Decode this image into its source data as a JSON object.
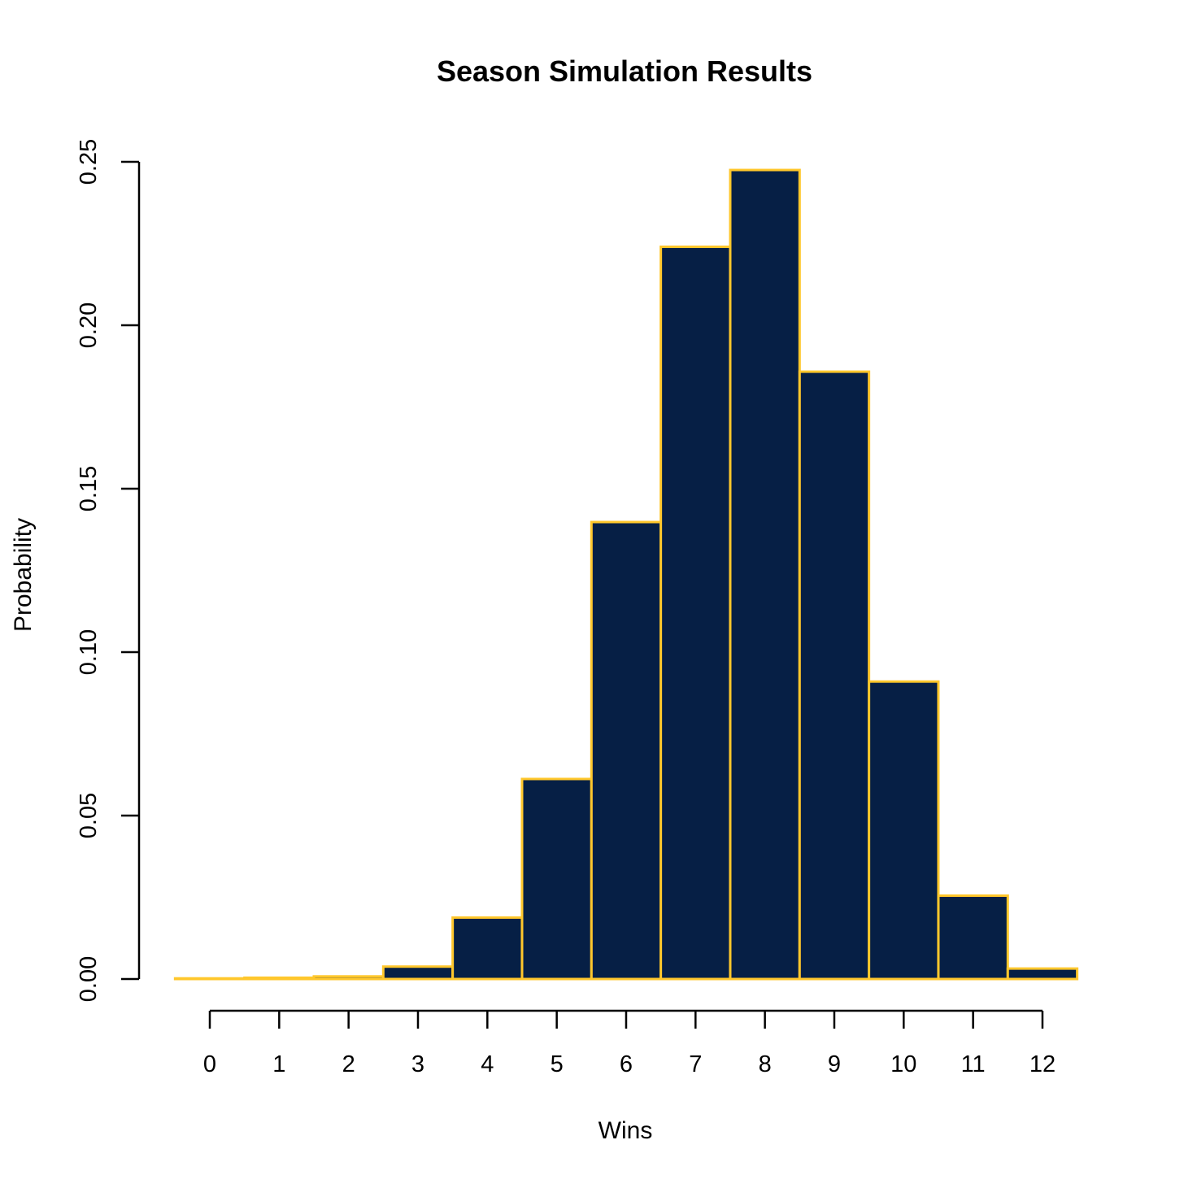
{
  "chart_data": {
    "type": "bar",
    "title": "Season Simulation Results",
    "xlabel": "Wins",
    "ylabel": "Probability",
    "categories": [
      "0",
      "1",
      "2",
      "3",
      "4",
      "5",
      "6",
      "7",
      "8",
      "9",
      "10",
      "11",
      "12"
    ],
    "values": [
      0.0002,
      0.0004,
      0.0008,
      0.0038,
      0.0188,
      0.0612,
      0.1398,
      0.224,
      0.2475,
      0.1858,
      0.091,
      0.0255,
      0.0032
    ],
    "x_ticks": [
      0,
      1,
      2,
      3,
      4,
      5,
      6,
      7,
      8,
      9,
      10,
      11,
      12
    ],
    "x_tick_labels": [
      "0",
      "1",
      "2",
      "3",
      "4",
      "5",
      "6",
      "7",
      "8",
      "9",
      "10",
      "11",
      "12"
    ],
    "y_ticks": [
      0.0,
      0.05,
      0.1,
      0.15,
      0.2,
      0.25
    ],
    "y_tick_labels": [
      "0.00",
      "0.05",
      "0.10",
      "0.15",
      "0.20",
      "0.25"
    ],
    "xlim": [
      -0.5,
      12.5
    ],
    "ylim": [
      0,
      0.25
    ],
    "grid": false,
    "legend": "none",
    "colors": {
      "bar_fill": "#061f45",
      "bar_edge": "#ffc72c",
      "axis": "#000000",
      "background": "#ffffff"
    }
  }
}
